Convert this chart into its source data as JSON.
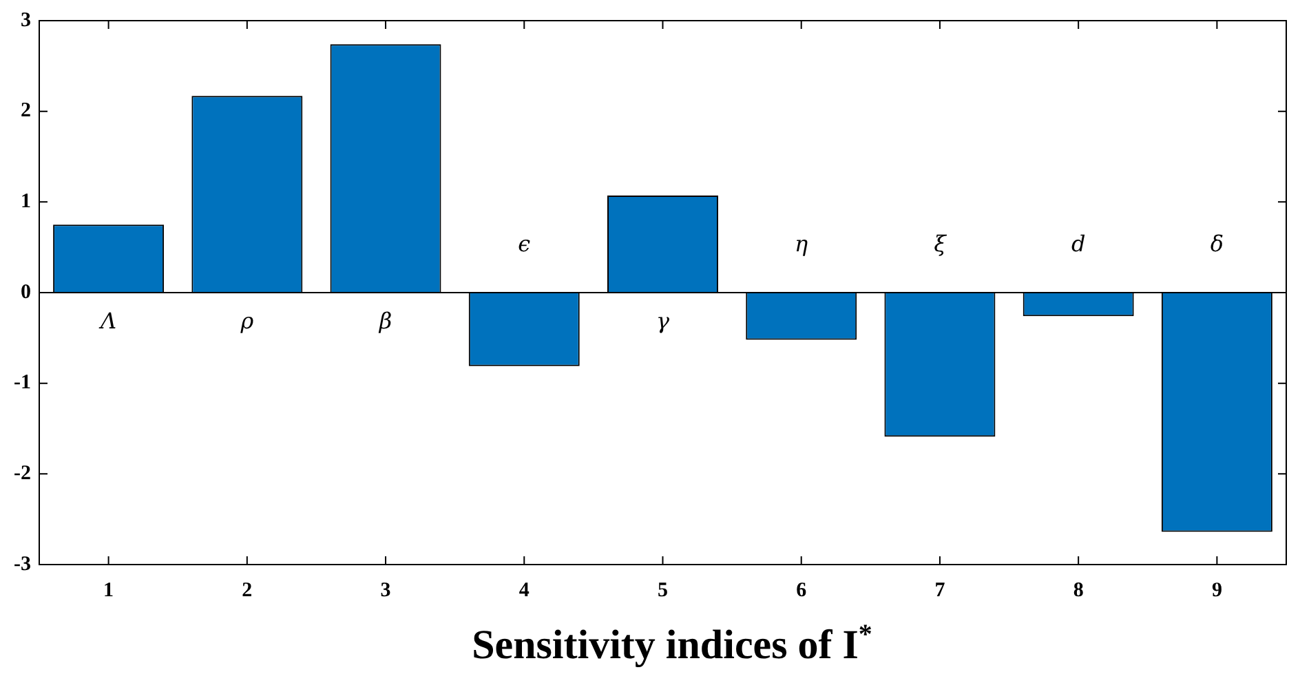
{
  "chart_data": {
    "type": "bar",
    "xlabel": "Sensitivity indices of I$^{*}$",
    "categories": [
      "1",
      "2",
      "3",
      "4",
      "5",
      "6",
      "7",
      "8",
      "9"
    ],
    "values": [
      0.75,
      2.17,
      2.74,
      -0.81,
      1.07,
      -0.52,
      -1.59,
      -0.26,
      -2.64
    ],
    "color": "#0072bd",
    "ylim": [
      -3,
      3
    ],
    "yticks": [
      -3,
      -2,
      -1,
      0,
      1,
      2,
      3
    ],
    "grid": false,
    "legend": false,
    "ref_lines": [
      {
        "axis": "y",
        "value": 0,
        "color": "#000000"
      }
    ],
    "annotations": [
      "Λ",
      "ρ",
      "β",
      "ϵ",
      "γ",
      "η",
      "ξ",
      "d",
      "δ"
    ]
  }
}
